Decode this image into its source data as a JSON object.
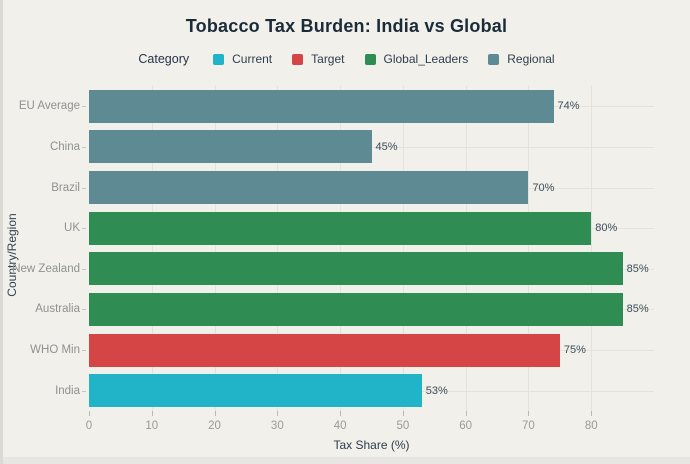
{
  "page": {
    "background": "#f1f0ea",
    "bottom_strip_color": "#e8e6e2",
    "left_edge_color": "#dad9d4"
  },
  "chart_data": {
    "type": "bar",
    "orientation": "horizontal",
    "title": "Tobacco Tax Burden: India vs Global",
    "legend_title": "Category",
    "legend_position": "top",
    "categories": [
      "EU Average",
      "China",
      "Brazil",
      "UK",
      "New Zealand",
      "Australia",
      "WHO Min",
      "India"
    ],
    "values": [
      74,
      45,
      70,
      80,
      85,
      85,
      75,
      53
    ],
    "value_labels": [
      "74%",
      "45%",
      "70%",
      "80%",
      "85%",
      "85%",
      "75%",
      "53%"
    ],
    "bar_categories": [
      "Regional",
      "Regional",
      "Regional",
      "Global_Leaders",
      "Global_Leaders",
      "Global_Leaders",
      "Target",
      "Current"
    ],
    "legend": [
      {
        "label": "Current",
        "color": "#21b4c8"
      },
      {
        "label": "Target",
        "color": "#d64545"
      },
      {
        "label": "Global_Leaders",
        "color": "#2f8c53"
      },
      {
        "label": "Regional",
        "color": "#5d8a93"
      }
    ],
    "xlabel": "Tax Share (%)",
    "ylabel": "Country/Region",
    "x_ticks": [
      0,
      10,
      20,
      30,
      40,
      50,
      60,
      70,
      80
    ],
    "xlim": [
      0,
      90
    ],
    "grid": true,
    "colors": {
      "title": "#1c2b3a",
      "legend_text": "#2d3e50",
      "value_label": "#3e4d5b",
      "category_label": "#8f9192",
      "tick_label": "#9b9a95",
      "axis_title": "#2e3c4e",
      "gridline": "#e3e2dc"
    }
  }
}
